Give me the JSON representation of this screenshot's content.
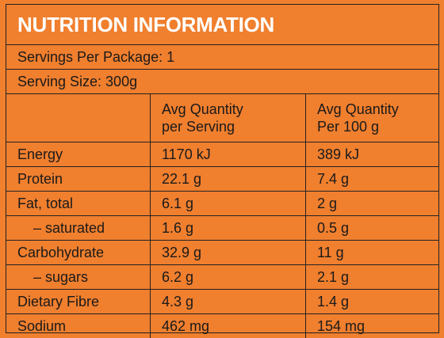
{
  "title": "NUTRITION INFORMATION",
  "servings_per_package": "Servings Per Package: 1",
  "serving_size": "Serving Size: 300g",
  "headers": {
    "per_serving_line1": "Avg Quantity",
    "per_serving_line2": "per Serving",
    "per_100g_line1": "Avg Quantity",
    "per_100g_line2": "Per 100 g"
  },
  "rows": [
    {
      "nutrient": "Energy",
      "per_serving": "1170 kJ",
      "per_100g": "389 kJ"
    },
    {
      "nutrient": "Protein",
      "per_serving": "22.1 g",
      "per_100g": "7.4 g"
    },
    {
      "nutrient": "Fat, total",
      "per_serving": "6.1 g",
      "per_100g": "2 g"
    },
    {
      "nutrient": "– saturated",
      "per_serving": "1.6 g",
      "per_100g": "0.5 g"
    },
    {
      "nutrient": "Carbohydrate",
      "per_serving": "32.9 g",
      "per_100g": "11 g"
    },
    {
      "nutrient": "– sugars",
      "per_serving": "6.2 g",
      "per_100g": "2.1 g"
    },
    {
      "nutrient": "Dietary Fibre",
      "per_serving": "4.3 g",
      "per_100g": "1.4 g"
    },
    {
      "nutrient": "Sodium",
      "per_serving": "462 mg",
      "per_100g": "154 mg"
    }
  ],
  "colors": {
    "background": "#f07f2e",
    "title_text": "#ffffff",
    "text": "#1a1a1a",
    "rule": "#222222"
  }
}
